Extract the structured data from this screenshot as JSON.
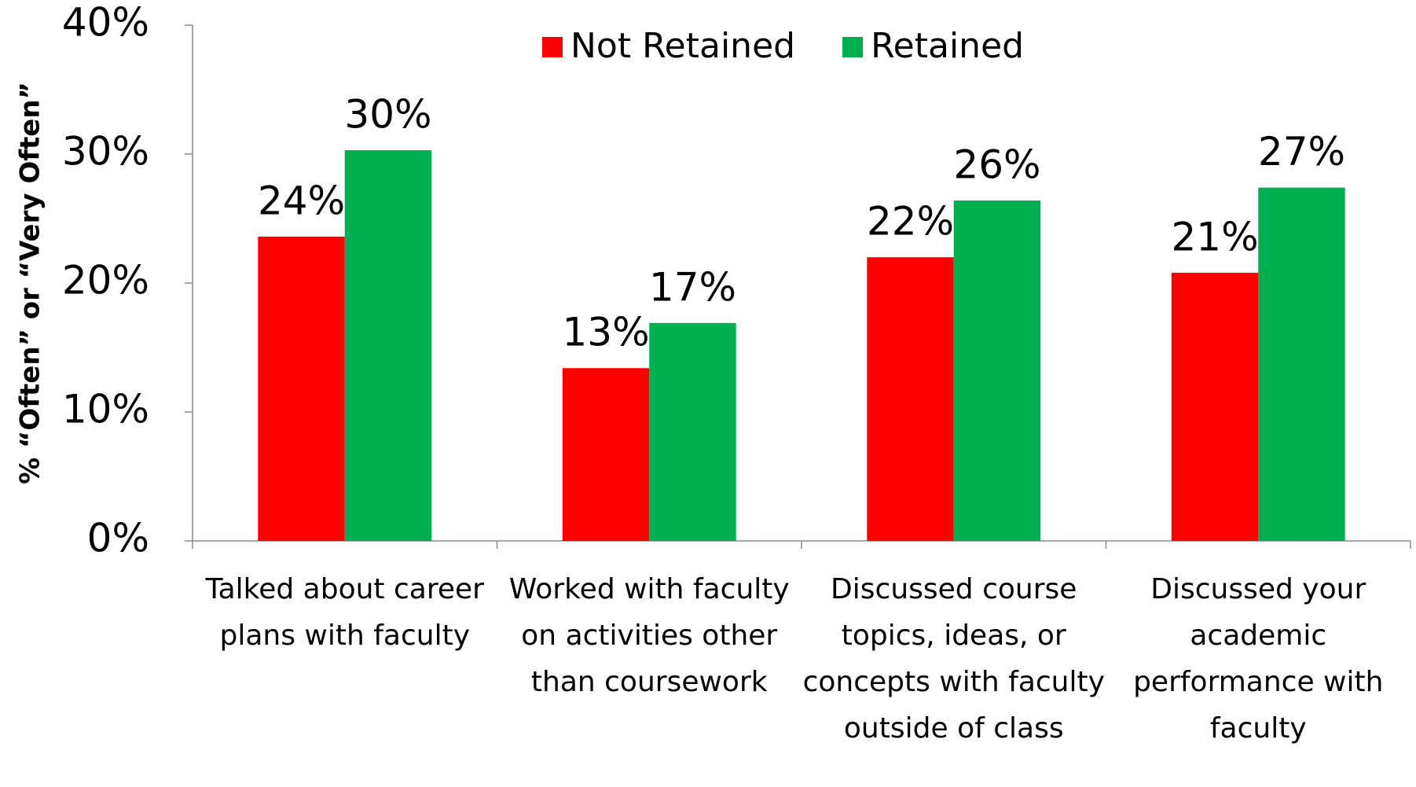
{
  "chart_data": {
    "type": "bar",
    "y_label": "% “Often” or “Very Often”",
    "categories": [
      "Talked about career plans with faculty",
      "Worked with faculty on activities other than coursework",
      "Discussed course topics, ideas, or concepts with faculty outside of class",
      "Discussed your academic performance with faculty"
    ],
    "series": [
      {
        "name": "Not Retained",
        "color": "#ff0000",
        "values": [
          23.6,
          13.4,
          22.0,
          20.8
        ],
        "value_labels": [
          "24%",
          "13%",
          "22%",
          "21%"
        ]
      },
      {
        "name": "Retained",
        "color": "#00b050",
        "values": [
          30.3,
          16.9,
          26.4,
          27.4
        ],
        "value_labels": [
          "30%",
          "17%",
          "26%",
          "27%"
        ]
      }
    ],
    "ylim": [
      0,
      40
    ],
    "yticks": [
      {
        "value": 0,
        "label": "0%"
      },
      {
        "value": 10,
        "label": "10%"
      },
      {
        "value": 20,
        "label": "20%"
      },
      {
        "value": 30,
        "label": "30%"
      },
      {
        "value": 40,
        "label": "40%"
      }
    ],
    "grid": false,
    "legend": "top"
  }
}
